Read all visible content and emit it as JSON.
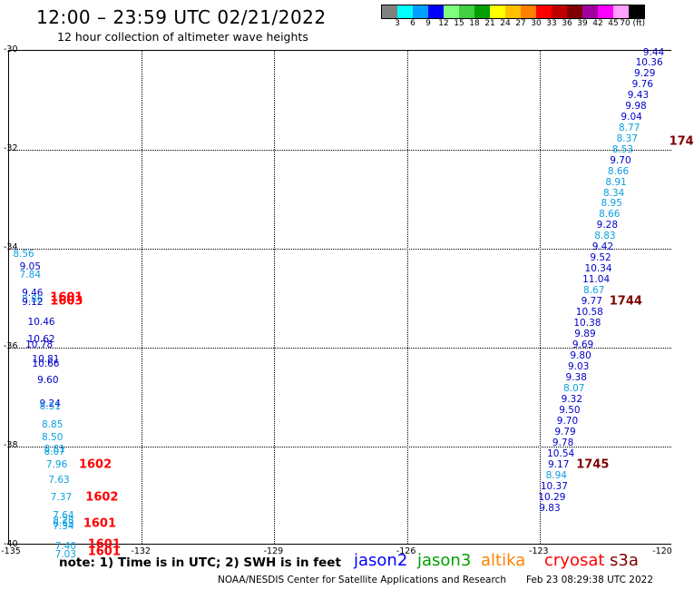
{
  "header": {
    "title": "12:00 – 23:59 UTC 02/21/2022",
    "subtitle": "12 hour collection of altimeter wave heights"
  },
  "colorbar": {
    "colors": [
      "#808080",
      "#00ffff",
      "#00a0ff",
      "#0000ff",
      "#7fff7f",
      "#40d040",
      "#00a000",
      "#ffff00",
      "#ffc000",
      "#ff8000",
      "#ff0000",
      "#c00000",
      "#800000",
      "#a000a0",
      "#ff00ff",
      "#ffa0ff",
      "#000000"
    ],
    "labels": [
      "3",
      "6",
      "9",
      "12",
      "15",
      "18",
      "21",
      "24",
      "27",
      "30",
      "33",
      "36",
      "39",
      "42",
      "45",
      "70 (ft)"
    ]
  },
  "axes": {
    "x_ticks": [
      "-135",
      "-132",
      "-129",
      "-126",
      "-123",
      "-120"
    ],
    "y_ticks": [
      "-30",
      "-32",
      "-34",
      "-36",
      "-38",
      "-40"
    ],
    "lon_range": [
      -135,
      -120
    ],
    "lat_range": [
      -40,
      -30
    ]
  },
  "chart_data": {
    "type": "scatter",
    "right_track": [
      {
        "lat": -30.05,
        "lon": -120.4,
        "v": "9.44",
        "c": "dark"
      },
      {
        "lat": -30.25,
        "lon": -120.5,
        "v": "10.36",
        "c": "dark"
      },
      {
        "lat": -30.47,
        "lon": -120.6,
        "v": "9.29",
        "c": "dark"
      },
      {
        "lat": -30.69,
        "lon": -120.65,
        "v": "9.76",
        "c": "dark"
      },
      {
        "lat": -30.91,
        "lon": -120.75,
        "v": "9.43",
        "c": "dark"
      },
      {
        "lat": -31.13,
        "lon": -120.8,
        "v": "9.98",
        "c": "dark"
      },
      {
        "lat": -31.35,
        "lon": -120.9,
        "v": "9.04",
        "c": "dark"
      },
      {
        "lat": -31.57,
        "lon": -120.95,
        "v": "8.77",
        "c": "light"
      },
      {
        "lat": -31.79,
        "lon": -121.0,
        "v": "8.37",
        "c": "light"
      },
      {
        "lat": -32.01,
        "lon": -121.1,
        "v": "8.53",
        "c": "light"
      },
      {
        "lat": -32.23,
        "lon": -121.15,
        "v": "9.70",
        "c": "dark"
      },
      {
        "lat": -32.45,
        "lon": -121.2,
        "v": "8.66",
        "c": "light"
      },
      {
        "lat": -32.67,
        "lon": -121.25,
        "v": "8.91",
        "c": "light"
      },
      {
        "lat": -32.89,
        "lon": -121.3,
        "v": "8.34",
        "c": "light"
      },
      {
        "lat": -33.11,
        "lon": -121.35,
        "v": "8.95",
        "c": "light"
      },
      {
        "lat": -33.33,
        "lon": -121.4,
        "v": "8.66",
        "c": "light"
      },
      {
        "lat": -33.55,
        "lon": -121.45,
        "v": "9.28",
        "c": "dark"
      },
      {
        "lat": -33.77,
        "lon": -121.5,
        "v": "8.83",
        "c": "light"
      },
      {
        "lat": -33.99,
        "lon": -121.55,
        "v": "9.42",
        "c": "dark"
      },
      {
        "lat": -34.21,
        "lon": -121.6,
        "v": "9.52",
        "c": "dark"
      },
      {
        "lat": -34.43,
        "lon": -121.65,
        "v": "10.34",
        "c": "dark"
      },
      {
        "lat": -34.65,
        "lon": -121.7,
        "v": "11.04",
        "c": "dark"
      },
      {
        "lat": -34.87,
        "lon": -121.75,
        "v": "8.67",
        "c": "light"
      },
      {
        "lat": -35.09,
        "lon": -121.8,
        "v": "9.77",
        "c": "dark"
      },
      {
        "lat": -35.31,
        "lon": -121.85,
        "v": "10.58",
        "c": "dark"
      },
      {
        "lat": -35.53,
        "lon": -121.9,
        "v": "10.38",
        "c": "dark"
      },
      {
        "lat": -35.75,
        "lon": -121.95,
        "v": "9.89",
        "c": "dark"
      },
      {
        "lat": -35.97,
        "lon": -122.0,
        "v": "9.69",
        "c": "dark"
      },
      {
        "lat": -36.19,
        "lon": -122.05,
        "v": "9.80",
        "c": "dark"
      },
      {
        "lat": -36.41,
        "lon": -122.1,
        "v": "9.03",
        "c": "dark"
      },
      {
        "lat": -36.63,
        "lon": -122.15,
        "v": "9.38",
        "c": "dark"
      },
      {
        "lat": -36.85,
        "lon": -122.2,
        "v": "8.07",
        "c": "light"
      },
      {
        "lat": -37.07,
        "lon": -122.25,
        "v": "9.32",
        "c": "dark"
      },
      {
        "lat": -37.29,
        "lon": -122.3,
        "v": "9.50",
        "c": "dark"
      },
      {
        "lat": -37.51,
        "lon": -122.35,
        "v": "9.70",
        "c": "dark"
      },
      {
        "lat": -37.73,
        "lon": -122.4,
        "v": "9.79",
        "c": "dark"
      },
      {
        "lat": -37.95,
        "lon": -122.45,
        "v": "9.78",
        "c": "dark"
      },
      {
        "lat": -38.17,
        "lon": -122.5,
        "v": "10.54",
        "c": "dark"
      },
      {
        "lat": -38.39,
        "lon": -122.55,
        "v": "9.17",
        "c": "dark"
      },
      {
        "lat": -38.61,
        "lon": -122.6,
        "v": "8.94",
        "c": "light"
      },
      {
        "lat": -38.83,
        "lon": -122.65,
        "v": "10.37",
        "c": "dark"
      },
      {
        "lat": -39.05,
        "lon": -122.7,
        "v": "10.29",
        "c": "dark"
      },
      {
        "lat": -39.27,
        "lon": -122.75,
        "v": "9.83",
        "c": "dark"
      }
    ],
    "left_track": [
      {
        "lat": -34.12,
        "lon": -134.65,
        "v": "8.56",
        "c": "light"
      },
      {
        "lat": -34.38,
        "lon": -134.5,
        "v": "9.05",
        "c": "dark"
      },
      {
        "lat": -34.55,
        "lon": -134.5,
        "v": "7.84",
        "c": "light"
      },
      {
        "lat": -34.92,
        "lon": -134.45,
        "v": "9.46",
        "c": "dark"
      },
      {
        "lat": -35.05,
        "lon": -134.45,
        "v": "8.86",
        "c": "light"
      },
      {
        "lat": -35.1,
        "lon": -134.45,
        "v": "9.12",
        "c": "dark"
      },
      {
        "lat": -35.5,
        "lon": -134.25,
        "v": "10.46",
        "c": "dark"
      },
      {
        "lat": -35.85,
        "lon": -134.25,
        "v": "10.62",
        "c": "dark"
      },
      {
        "lat": -35.97,
        "lon": -134.3,
        "v": "10.78",
        "c": "dark"
      },
      {
        "lat": -36.25,
        "lon": -134.15,
        "v": "10.81",
        "c": "dark"
      },
      {
        "lat": -36.35,
        "lon": -134.15,
        "v": "10.66",
        "c": "dark"
      },
      {
        "lat": -36.68,
        "lon": -134.1,
        "v": "9.60",
        "c": "dark"
      },
      {
        "lat": -37.15,
        "lon": -134.05,
        "v": "9.24",
        "c": "dark"
      },
      {
        "lat": -37.22,
        "lon": -134.05,
        "v": "8.51",
        "c": "light"
      },
      {
        "lat": -37.58,
        "lon": -134.0,
        "v": "8.85",
        "c": "light"
      },
      {
        "lat": -37.84,
        "lon": -134.0,
        "v": "8.50",
        "c": "light"
      },
      {
        "lat": -38.08,
        "lon": -133.95,
        "v": "8.81",
        "c": "light"
      },
      {
        "lat": -38.12,
        "lon": -133.95,
        "v": "8.07",
        "c": "light"
      },
      {
        "lat": -38.38,
        "lon": -133.9,
        "v": "7.96",
        "c": "light"
      },
      {
        "lat": -38.7,
        "lon": -133.85,
        "v": "7.63",
        "c": "light"
      },
      {
        "lat": -39.05,
        "lon": -133.8,
        "v": "7.37",
        "c": "light"
      },
      {
        "lat": -39.42,
        "lon": -133.75,
        "v": "7.64",
        "c": "light"
      },
      {
        "lat": -39.52,
        "lon": -133.75,
        "v": "8.28",
        "c": "light"
      },
      {
        "lat": -39.58,
        "lon": -133.75,
        "v": "6.63",
        "c": "light"
      },
      {
        "lat": -39.63,
        "lon": -133.75,
        "v": "7.34",
        "c": "light"
      },
      {
        "lat": -40.03,
        "lon": -133.7,
        "v": "7.40",
        "c": "light"
      },
      {
        "lat": -40.2,
        "lon": -133.7,
        "v": "7.03",
        "c": "light"
      }
    ],
    "time_labels": [
      {
        "lat": -31.86,
        "lon": -120.05,
        "t": "174",
        "c": "dark"
      },
      {
        "lat": -35.09,
        "lon": -121.4,
        "t": "1744",
        "c": "dark"
      },
      {
        "lat": -38.39,
        "lon": -122.15,
        "t": "1745",
        "c": "dark"
      },
      {
        "lat": -35.0,
        "lon": -134.05,
        "t": "1601",
        "c": "red"
      },
      {
        "lat": -35.08,
        "lon": -134.05,
        "t": "1603",
        "c": "red"
      },
      {
        "lat": -38.38,
        "lon": -133.4,
        "t": "1602",
        "c": "red"
      },
      {
        "lat": -39.05,
        "lon": -133.25,
        "t": "1602",
        "c": "red"
      },
      {
        "lat": -39.58,
        "lon": -133.3,
        "t": "1601",
        "c": "red"
      },
      {
        "lat": -40.0,
        "lon": -133.2,
        "t": "1601",
        "c": "red"
      },
      {
        "lat": -40.15,
        "lon": -133.2,
        "t": "1601",
        "c": "red"
      }
    ]
  },
  "footer": {
    "note": "note: 1) Time is in UTC; 2) SWH is in feet",
    "legend": [
      {
        "name": "jason2",
        "color": "#0000ff"
      },
      {
        "name": "jason3",
        "color": "#00a000"
      },
      {
        "name": "altika",
        "color": "#ff8000"
      },
      {
        "name": "cryosat",
        "color": "#ff0000"
      },
      {
        "name": "s3a",
        "color": "#800000"
      }
    ],
    "credit": "NOAA/NESDIS Center for Satellite Applications and Research",
    "stamp": "Feb 23 08:29:38 UTC 2022"
  }
}
